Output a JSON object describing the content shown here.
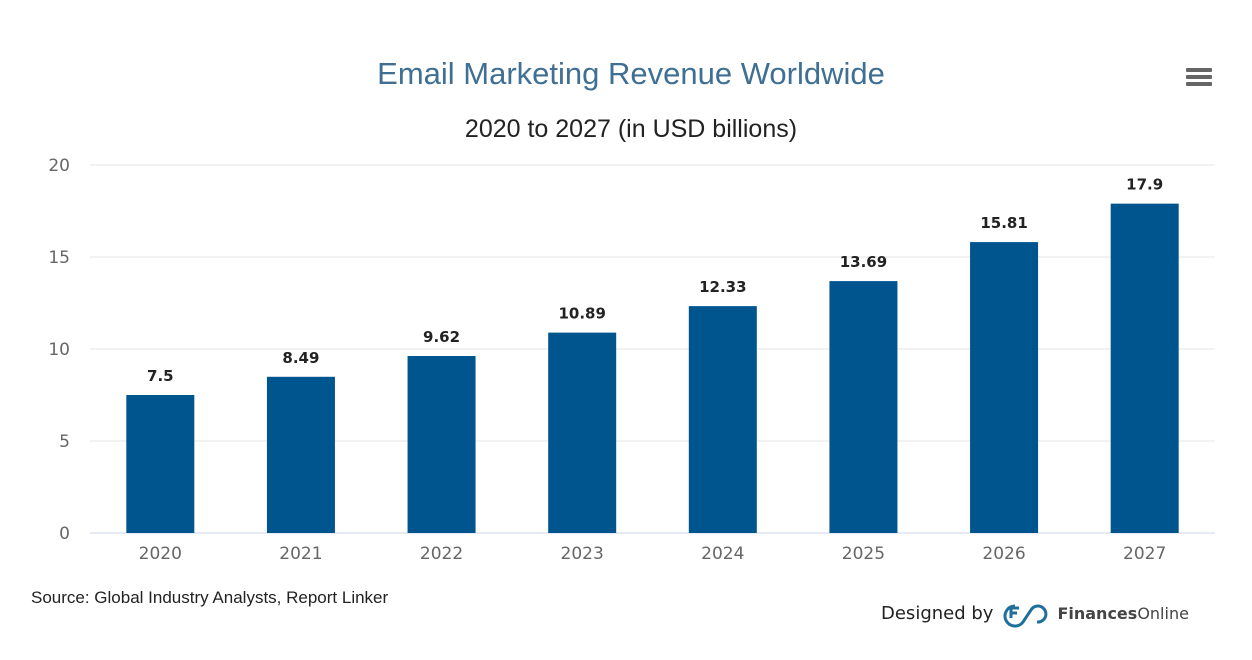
{
  "chart_data": {
    "type": "bar",
    "title": "Email Marketing Revenue Worldwide",
    "subtitle": "2020 to 2027 (in USD billions)",
    "categories": [
      "2020",
      "2021",
      "2022",
      "2023",
      "2024",
      "2025",
      "2026",
      "2027"
    ],
    "values": [
      7.5,
      8.49,
      9.62,
      10.89,
      12.33,
      13.69,
      15.81,
      17.9
    ],
    "value_labels": [
      "7.5",
      "8.49",
      "9.62",
      "10.89",
      "12.33",
      "13.69",
      "15.81",
      "17.9"
    ],
    "ylim": [
      0,
      20
    ],
    "yticks": [
      "0",
      "5",
      "10",
      "15",
      "20"
    ],
    "grid": true,
    "legend": "none",
    "bar_color": "#00558f"
  },
  "source": "Source: Global Industry Analysts, Report Linker",
  "credit": {
    "prefix": "Designed by",
    "brand_bold": "Finances",
    "brand_light": "Online"
  },
  "menu_icon": "hamburger-menu-icon"
}
